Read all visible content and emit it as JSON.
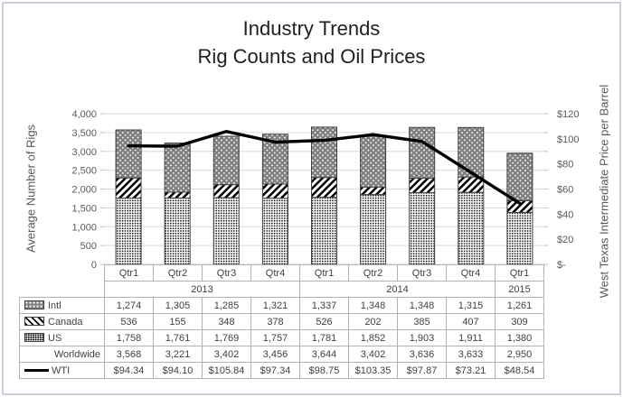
{
  "title": {
    "line1": "Industry Trends",
    "line2": "Rig Counts and Oil Prices"
  },
  "axes": {
    "left": {
      "title": "Average Number of Rigs",
      "ticks": [
        "4,000",
        "3,500",
        "3,000",
        "2,500",
        "2,000",
        "1,500",
        "1,000",
        "500",
        "0"
      ],
      "range": [
        0,
        4000
      ],
      "step": 500
    },
    "right": {
      "title": "West Texas Intermediate Price per Barrel",
      "ticks": [
        "$120",
        "$100",
        "$80",
        "$60",
        "$40",
        "$20",
        "$-"
      ],
      "range": [
        0,
        120
      ],
      "step": 20
    }
  },
  "chart_data": {
    "type": "combo-stacked-bar-line",
    "title": "Industry Trends Rig Counts and Oil Prices",
    "categories": [
      "Qtr1",
      "Qtr2",
      "Qtr3",
      "Qtr4",
      "Qtr1",
      "Qtr2",
      "Qtr3",
      "Qtr4",
      "Qtr1"
    ],
    "year_groups": [
      {
        "label": "2013",
        "span": 4
      },
      {
        "label": "2014",
        "span": 4
      },
      {
        "label": "2015",
        "span": 1
      }
    ],
    "stack_order_bottom_to_top": [
      "US",
      "Canada",
      "Intl"
    ],
    "series": [
      {
        "name": "Intl",
        "type": "bar",
        "axis": "left",
        "pattern": "gray-with-white-dots",
        "values": [
          1274,
          1305,
          1285,
          1321,
          1337,
          1348,
          1348,
          1315,
          1261
        ]
      },
      {
        "name": "Canada",
        "type": "bar",
        "axis": "left",
        "pattern": "black-diagonal-stripes",
        "values": [
          536,
          155,
          348,
          378,
          526,
          202,
          385,
          407,
          309
        ]
      },
      {
        "name": "US",
        "type": "bar",
        "axis": "left",
        "pattern": "fine-black-dots",
        "values": [
          1758,
          1761,
          1769,
          1757,
          1781,
          1852,
          1903,
          1911,
          1380
        ]
      },
      {
        "name": "Worldwide",
        "type": "total",
        "axis": "left",
        "values": [
          3568,
          3221,
          3402,
          3456,
          3644,
          3402,
          3636,
          3633,
          2950
        ]
      },
      {
        "name": "WTI",
        "type": "line",
        "axis": "right",
        "values": [
          94.34,
          94.1,
          105.84,
          97.34,
          98.75,
          103.35,
          97.87,
          73.21,
          48.54
        ]
      }
    ],
    "ylabel_left": "Average Number of Rigs",
    "ylabel_right": "West Texas Intermediate Price per Barrel",
    "ylim_left": [
      0,
      4000
    ],
    "ylim_right": [
      0,
      120
    ],
    "grid": true,
    "legend_position": "data-table-left-column"
  },
  "table": {
    "rows": [
      {
        "label": "Intl",
        "swatch": "intl",
        "values": [
          "1,274",
          "1,305",
          "1,285",
          "1,321",
          "1,337",
          "1,348",
          "1,348",
          "1,315",
          "1,261"
        ]
      },
      {
        "label": "Canada",
        "swatch": "canada",
        "values": [
          "536",
          "155",
          "348",
          "378",
          "526",
          "202",
          "385",
          "407",
          "309"
        ]
      },
      {
        "label": "US",
        "swatch": "us",
        "values": [
          "1,758",
          "1,761",
          "1,769",
          "1,757",
          "1,781",
          "1,852",
          "1,903",
          "1,911",
          "1,380"
        ]
      },
      {
        "label": "Worldwide",
        "swatch": "none",
        "values": [
          "3,568",
          "3,221",
          "3,402",
          "3,456",
          "3,644",
          "3,402",
          "3,636",
          "3,633",
          "2,950"
        ]
      },
      {
        "label": "WTI",
        "swatch": "wti",
        "values": [
          "$94.34",
          "$94.10",
          "$105.84",
          "$97.34",
          "$98.75",
          "$103.35",
          "$97.87",
          "$73.21",
          "$48.54"
        ]
      }
    ]
  },
  "colors": {
    "line": "#000000",
    "intl_fill": "#7f7f7f",
    "pattern_fg": "#000000",
    "gridline": "#d9d9d9",
    "tick_mark": "#bfbfbf",
    "table_border": "#b3b3b3",
    "tick_text": "#595959",
    "title_text": "#1f1f1f",
    "frame_border": "#cbd1da",
    "bar_border": "#404040"
  }
}
